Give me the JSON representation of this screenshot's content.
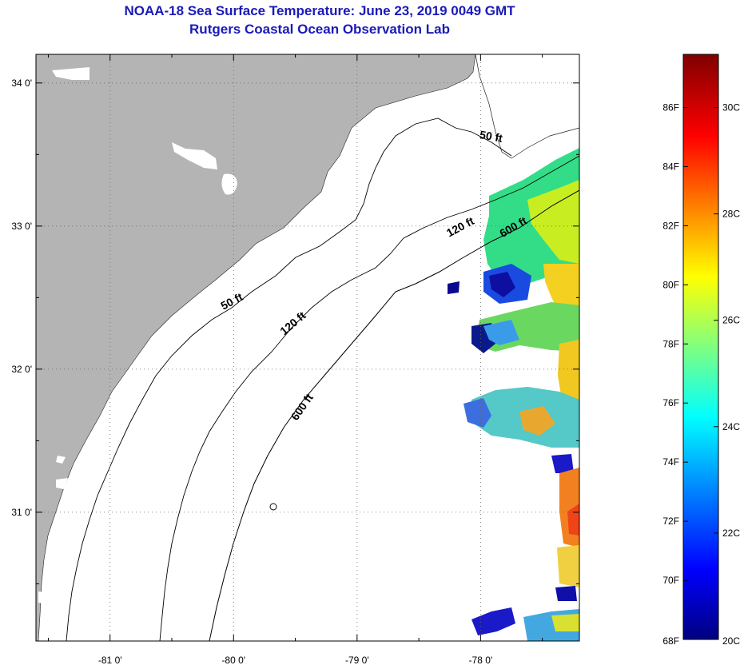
{
  "title": "NOAA-18 Sea Surface Temperature:  June 23, 2019 0049 GMT",
  "subtitle": "Rutgers Coastal Ocean Observation Lab",
  "map": {
    "lon_range": [
      -81.6,
      -77.2
    ],
    "lat_range": [
      30.1,
      34.2
    ],
    "lon_ticks": [
      {
        "value": -81,
        "label": "-81 0'"
      },
      {
        "value": -80,
        "label": "-80 0'"
      },
      {
        "value": -79,
        "label": "-79 0'"
      },
      {
        "value": -78,
        "label": "-78 0'"
      }
    ],
    "lat_ticks": [
      {
        "value": 34,
        "label": "34 0'"
      },
      {
        "value": 33,
        "label": "33 0'"
      },
      {
        "value": 32,
        "label": "32 0'"
      },
      {
        "value": 31,
        "label": "31 0'"
      }
    ],
    "grid": "dotted",
    "land_color": "#b4b4b4",
    "contours": [
      {
        "label": "50 ft",
        "id": "c50"
      },
      {
        "label": "120 ft",
        "id": "c120"
      },
      {
        "label": "600 ft",
        "id": "c600"
      }
    ],
    "contour_labels": [
      {
        "text": "50 ft",
        "contour": "c50",
        "lon": -80.0,
        "lat": 32.45,
        "angle": -28
      },
      {
        "text": "50 ft",
        "contour": "c50",
        "lon": -77.92,
        "lat": 33.6,
        "angle": 10
      },
      {
        "text": "120 ft",
        "contour": "c120",
        "lon": -79.5,
        "lat": 32.3,
        "angle": -40
      },
      {
        "text": "120 ft",
        "contour": "c120",
        "lon": -78.15,
        "lat": 32.97,
        "angle": -28
      },
      {
        "text": "600 ft",
        "contour": "c600",
        "lon": -79.42,
        "lat": 31.72,
        "angle": -55
      },
      {
        "text": "600 ft",
        "contour": "c600",
        "lon": -77.72,
        "lat": 32.97,
        "angle": -30
      }
    ]
  },
  "colorbar": {
    "f_labels": [
      "86F",
      "84F",
      "82F",
      "80F",
      "78F",
      "76F",
      "74F",
      "72F",
      "70F",
      "68F"
    ],
    "c_labels": [
      "30C",
      "28C",
      "26C",
      "24C",
      "22C",
      "20C"
    ],
    "colors": [
      "#000080",
      "#0000ff",
      "#00ffff",
      "#ffff00",
      "#ff0000",
      "#800000"
    ]
  }
}
